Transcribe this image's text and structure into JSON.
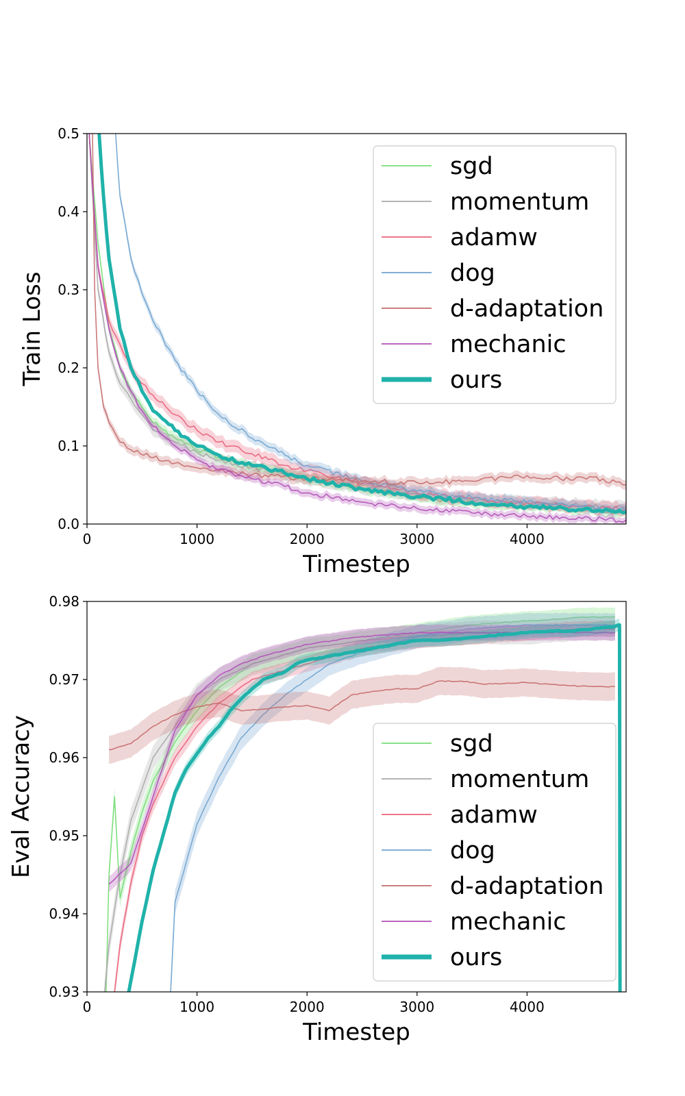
{
  "chart_data": [
    {
      "type": "line",
      "xlabel": "Timestep",
      "ylabel": "Train Loss",
      "xlim": [
        0,
        4900
      ],
      "ylim": [
        0.0,
        0.5
      ],
      "xticks": [
        0,
        1000,
        2000,
        3000,
        4000
      ],
      "xtick_labels": [
        "0",
        "1000",
        "2000",
        "3000",
        "4000"
      ],
      "yticks": [
        0.0,
        0.1,
        0.2,
        0.3,
        0.4,
        0.5
      ],
      "ytick_labels": [
        "0.0",
        "0.1",
        "0.2",
        "0.3",
        "0.4",
        "0.5"
      ],
      "grid": false,
      "legend_position": "top-right",
      "series": [
        {
          "name": "sgd",
          "color": "#77dd77",
          "band": 0.006,
          "x": [
            20,
            100,
            200,
            300,
            400,
            500,
            600,
            800,
            1000,
            1200,
            1500,
            1800,
            2000,
            2500,
            3000,
            3500,
            4000,
            4500,
            4900
          ],
          "y": [
            0.5,
            0.36,
            0.25,
            0.2,
            0.17,
            0.15,
            0.13,
            0.11,
            0.095,
            0.085,
            0.075,
            0.065,
            0.058,
            0.045,
            0.035,
            0.027,
            0.022,
            0.018,
            0.015
          ]
        },
        {
          "name": "momentum",
          "color": "#a9a9a9",
          "band": 0.008,
          "x": [
            20,
            100,
            200,
            300,
            400,
            500,
            600,
            800,
            1000,
            1200,
            1500,
            1800,
            2000,
            2500,
            3000,
            3500,
            4000,
            4500,
            4900
          ],
          "y": [
            0.5,
            0.3,
            0.22,
            0.18,
            0.16,
            0.14,
            0.12,
            0.105,
            0.092,
            0.082,
            0.072,
            0.064,
            0.058,
            0.046,
            0.038,
            0.032,
            0.028,
            0.024,
            0.022
          ]
        },
        {
          "name": "adamw",
          "color": "#e8627a",
          "band": 0.008,
          "x": [
            20,
            100,
            200,
            300,
            400,
            500,
            600,
            800,
            1000,
            1200,
            1500,
            1800,
            2000,
            2500,
            3000,
            3500,
            4000,
            4500,
            4900
          ],
          "y": [
            0.5,
            0.33,
            0.26,
            0.23,
            0.2,
            0.18,
            0.165,
            0.14,
            0.12,
            0.105,
            0.09,
            0.075,
            0.068,
            0.052,
            0.04,
            0.032,
            0.027,
            0.022,
            0.02
          ]
        },
        {
          "name": "dog",
          "color": "#6fa3cf",
          "band": 0.006,
          "x": [
            260,
            300,
            400,
            500,
            600,
            800,
            1000,
            1200,
            1500,
            1800,
            2000,
            2500,
            3000,
            3500,
            4000,
            4500,
            4900
          ],
          "y": [
            0.5,
            0.42,
            0.34,
            0.295,
            0.26,
            0.21,
            0.17,
            0.14,
            0.11,
            0.088,
            0.075,
            0.055,
            0.042,
            0.034,
            0.028,
            0.022,
            0.018
          ]
        },
        {
          "name": "d-adaptation",
          "color": "#c56b6b",
          "band": 0.006,
          "x": [
            50,
            70,
            100,
            150,
            200,
            300,
            400,
            600,
            800,
            1000,
            1200,
            1500,
            2000,
            2500,
            3000,
            3500,
            3800,
            4000,
            4300,
            4600,
            4900
          ],
          "y": [
            0.5,
            0.3,
            0.2,
            0.15,
            0.13,
            0.105,
            0.095,
            0.085,
            0.078,
            0.072,
            0.068,
            0.063,
            0.058,
            0.055,
            0.053,
            0.055,
            0.06,
            0.062,
            0.058,
            0.06,
            0.05
          ]
        },
        {
          "name": "mechanic",
          "color": "#b04fb6",
          "band": 0.005,
          "x": [
            20,
            100,
            200,
            300,
            400,
            500,
            600,
            800,
            1000,
            1200,
            1500,
            1800,
            2000,
            2500,
            3000,
            3500,
            4000,
            4500,
            4900
          ],
          "y": [
            0.5,
            0.33,
            0.25,
            0.2,
            0.17,
            0.145,
            0.125,
            0.1,
            0.082,
            0.07,
            0.058,
            0.048,
            0.04,
            0.028,
            0.02,
            0.014,
            0.01,
            0.007,
            0.005
          ]
        },
        {
          "name": "ours",
          "color": "#20b2aa",
          "band": 0,
          "bold": true,
          "x": [
            110,
            150,
            200,
            300,
            400,
            500,
            600,
            800,
            1000,
            1200,
            1500,
            1800,
            2000,
            2500,
            3000,
            3500,
            4000,
            4500,
            4900
          ],
          "y": [
            0.5,
            0.42,
            0.34,
            0.25,
            0.2,
            0.17,
            0.145,
            0.12,
            0.1,
            0.088,
            0.075,
            0.065,
            0.058,
            0.045,
            0.035,
            0.028,
            0.022,
            0.018,
            0.015
          ]
        }
      ]
    },
    {
      "type": "line",
      "xlabel": "Timestep",
      "ylabel": "Eval Accuracy",
      "xlim": [
        0,
        4900
      ],
      "ylim": [
        0.93,
        0.98
      ],
      "xticks": [
        0,
        1000,
        2000,
        3000,
        4000
      ],
      "xtick_labels": [
        "0",
        "1000",
        "2000",
        "3000",
        "4000"
      ],
      "yticks": [
        0.93,
        0.94,
        0.95,
        0.96,
        0.97,
        0.98
      ],
      "ytick_labels": [
        "0.93",
        "0.94",
        "0.95",
        "0.96",
        "0.97",
        "0.98"
      ],
      "grid": false,
      "legend_position": "bottom-right",
      "series": [
        {
          "name": "sgd",
          "color": "#77dd77",
          "band": 0.0012,
          "x": [
            170,
            200,
            250,
            300,
            400,
            500,
            600,
            800,
            1000,
            1200,
            1500,
            2000,
            2500,
            3000,
            3500,
            4000,
            4500,
            4800
          ],
          "y": [
            0.928,
            0.945,
            0.955,
            0.942,
            0.948,
            0.953,
            0.957,
            0.962,
            0.966,
            0.969,
            0.972,
            0.974,
            0.975,
            0.976,
            0.977,
            0.9775,
            0.978,
            0.978
          ]
        },
        {
          "name": "momentum",
          "color": "#a9a9a9",
          "band": 0.0015,
          "x": [
            160,
            200,
            300,
            400,
            500,
            600,
            800,
            1000,
            1200,
            1500,
            2000,
            2500,
            3000,
            3500,
            4000,
            4500,
            4800
          ],
          "y": [
            0.93,
            0.936,
            0.945,
            0.952,
            0.956,
            0.96,
            0.964,
            0.968,
            0.97,
            0.972,
            0.974,
            0.975,
            0.9755,
            0.976,
            0.976,
            0.9765,
            0.9765
          ]
        },
        {
          "name": "adamw",
          "color": "#e8627a",
          "band": 0.001,
          "x": [
            250,
            300,
            400,
            500,
            600,
            800,
            1000,
            1200,
            1500,
            2000,
            2500,
            3000,
            3500,
            4000,
            4500,
            4800
          ],
          "y": [
            0.93,
            0.936,
            0.944,
            0.95,
            0.954,
            0.96,
            0.964,
            0.967,
            0.97,
            0.972,
            0.974,
            0.975,
            0.9755,
            0.976,
            0.9765,
            0.9765
          ]
        },
        {
          "name": "dog",
          "color": "#6fa3cf",
          "band": 0.0015,
          "x": [
            760,
            800,
            1000,
            1200,
            1400,
            1600,
            1800,
            2000,
            2200,
            2500,
            3000,
            3500,
            4000,
            4500,
            4800
          ],
          "y": [
            0.93,
            0.9415,
            0.9515,
            0.9575,
            0.9625,
            0.9655,
            0.968,
            0.97,
            0.972,
            0.9735,
            0.9755,
            0.9765,
            0.977,
            0.977,
            0.977
          ]
        },
        {
          "name": "d-adaptation",
          "color": "#c56b6b",
          "band": 0.0018,
          "x": [
            200,
            400,
            600,
            800,
            1000,
            1200,
            1400,
            1600,
            1800,
            2000,
            2200,
            2400,
            2600,
            2800,
            3000,
            3200,
            3400,
            3600,
            3800,
            4000,
            4200,
            4400,
            4600,
            4800
          ],
          "y": [
            0.961,
            0.9618,
            0.964,
            0.9655,
            0.9665,
            0.967,
            0.966,
            0.9662,
            0.9665,
            0.9667,
            0.966,
            0.968,
            0.9685,
            0.9688,
            0.9688,
            0.9698,
            0.9698,
            0.9694,
            0.9695,
            0.9696,
            0.9694,
            0.9692,
            0.9691,
            0.9691
          ]
        },
        {
          "name": "mechanic",
          "color": "#b04fb6",
          "band": 0.001,
          "x": [
            200,
            400,
            600,
            800,
            1000,
            1200,
            1400,
            1600,
            2000,
            2500,
            3000,
            3500,
            4000,
            4500,
            4800
          ],
          "y": [
            0.9438,
            0.9465,
            0.955,
            0.9635,
            0.968,
            0.9705,
            0.972,
            0.973,
            0.9745,
            0.9755,
            0.976,
            0.976,
            0.976,
            0.976,
            0.976
          ]
        },
        {
          "name": "ours",
          "color": "#20b2aa",
          "band": 0.0008,
          "bold": true,
          "x": [
            380,
            400,
            500,
            600,
            700,
            800,
            900,
            1000,
            1100,
            1200,
            1300,
            1400,
            1500,
            1600,
            1700,
            1800,
            1900,
            2000,
            2200,
            2400,
            2600,
            2800,
            3000,
            3200,
            3400,
            3600,
            3800,
            4000,
            4200,
            4400,
            4600,
            4800,
            4840,
            4845
          ],
          "y": [
            0.93,
            0.9315,
            0.939,
            0.9455,
            0.9505,
            0.9555,
            0.9585,
            0.9605,
            0.9625,
            0.964,
            0.966,
            0.9675,
            0.9688,
            0.97,
            0.9705,
            0.971,
            0.972,
            0.9725,
            0.973,
            0.9735,
            0.974,
            0.9745,
            0.975,
            0.975,
            0.9752,
            0.9755,
            0.9758,
            0.976,
            0.9762,
            0.9762,
            0.9765,
            0.9768,
            0.977,
            0.925
          ]
        }
      ]
    }
  ]
}
